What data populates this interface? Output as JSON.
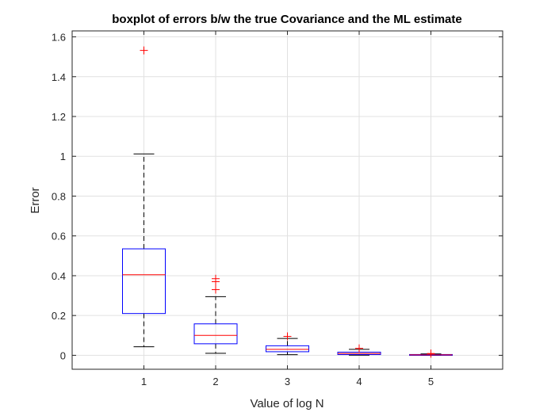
{
  "chart_data": {
    "type": "boxplot",
    "title": "boxplot of errors b/w the true Covariance and the ML estimate",
    "xlabel": "Value of log N",
    "ylabel": "Error",
    "categories": [
      "1",
      "2",
      "3",
      "4",
      "5"
    ],
    "yticks": [
      "0",
      "0.2",
      "0.4",
      "0.6",
      "0.8",
      "1",
      "1.2",
      "1.4",
      "1.6"
    ],
    "ylim": [
      -0.07,
      1.63
    ],
    "grid": true,
    "boxes": [
      {
        "category": "1",
        "whisker_low": 0.043,
        "q1": 0.21,
        "median": 0.405,
        "q3": 0.535,
        "whisker_high": 1.012,
        "outliers": [
          1.532
        ]
      },
      {
        "category": "2",
        "whisker_low": 0.01,
        "q1": 0.058,
        "median": 0.1,
        "q3": 0.158,
        "whisker_high": 0.295,
        "outliers": [
          0.33,
          0.37,
          0.385
        ]
      },
      {
        "category": "3",
        "whisker_low": 0.003,
        "q1": 0.018,
        "median": 0.03,
        "q3": 0.048,
        "whisker_high": 0.085,
        "outliers": [
          0.095
        ]
      },
      {
        "category": "4",
        "whisker_low": 0.0005,
        "q1": 0.004,
        "median": 0.009,
        "q3": 0.016,
        "whisker_high": 0.03,
        "outliers": [
          0.035
        ]
      },
      {
        "category": "5",
        "whisker_low": 0.0,
        "q1": 0.001,
        "median": 0.002,
        "q3": 0.004,
        "whisker_high": 0.007,
        "outliers": [
          0.008,
          0.009
        ]
      }
    ],
    "colors": {
      "box": "#0000ff",
      "median": "#ff0000",
      "whisker": "#000000",
      "outlier": "#ff0000",
      "grid": "#e1e1e1",
      "axis": "#262626"
    }
  }
}
